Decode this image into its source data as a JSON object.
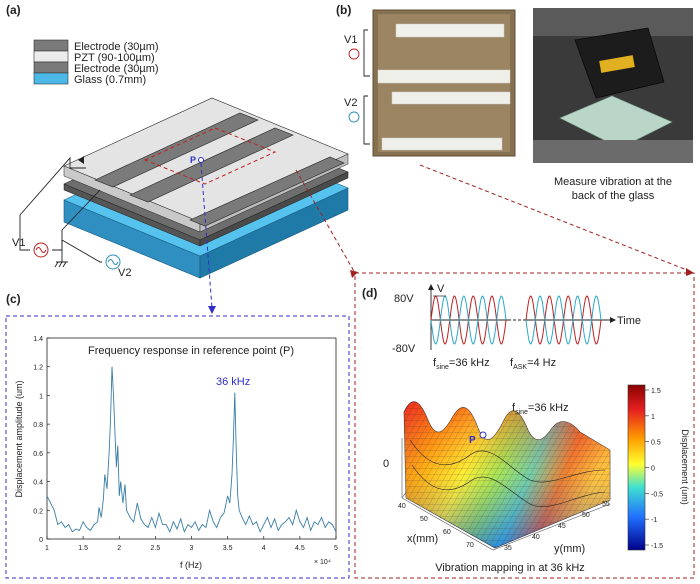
{
  "panels": {
    "a": "(a)",
    "b": "(b)",
    "c": "(c)",
    "d": "(d)"
  },
  "legend": [
    {
      "label": "Electrode (30µm)",
      "color": "#7a7a7a"
    },
    {
      "label": "PZT       (90-100µm)",
      "color": "#ececec"
    },
    {
      "label": "Electrode (30µm)",
      "color": "#7a7a7a"
    },
    {
      "label": "Glass       (0.7mm)",
      "color": "#4cb8e8"
    }
  ],
  "diagram_a": {
    "point": "P",
    "v1": "V1",
    "v2": "V2"
  },
  "photo_b": {
    "v1": "V1",
    "v2": "V2",
    "caption_line1": "Measure vibration at the",
    "caption_line2": "back of the glass"
  },
  "chart_data": [
    {
      "type": "line",
      "title": "Frequency response in reference point (P)",
      "xlabel": "f (Hz)",
      "ylabel": "Displacement amplitude (um)",
      "x_multiplier": "× 10⁴",
      "xlim": [
        1,
        5
      ],
      "ylim": [
        0,
        1.4
      ],
      "xticks": [
        "1",
        "1.5",
        "2",
        "2.5",
        "3",
        "3.5",
        "4",
        "4.5",
        "5"
      ],
      "yticks": [
        "0",
        "0.2",
        "0.4",
        "0.6",
        "0.8",
        "1",
        "1.2",
        "1.4"
      ],
      "annotation": "36 kHz",
      "series": [
        {
          "color": "#3a7ea8",
          "x": [
            1.0,
            1.05,
            1.1,
            1.15,
            1.2,
            1.25,
            1.3,
            1.35,
            1.4,
            1.45,
            1.5,
            1.55,
            1.6,
            1.65,
            1.7,
            1.72,
            1.75,
            1.78,
            1.8,
            1.83,
            1.86,
            1.88,
            1.9,
            1.92,
            1.94,
            1.96,
            1.98,
            2.0,
            2.02,
            2.05,
            2.08,
            2.1,
            2.15,
            2.2,
            2.25,
            2.3,
            2.35,
            2.4,
            2.45,
            2.5,
            2.55,
            2.6,
            2.65,
            2.7,
            2.75,
            2.8,
            2.85,
            2.9,
            2.95,
            3.0,
            3.05,
            3.1,
            3.15,
            3.2,
            3.25,
            3.3,
            3.35,
            3.4,
            3.45,
            3.5,
            3.53,
            3.56,
            3.58,
            3.6,
            3.62,
            3.64,
            3.66,
            3.7,
            3.75,
            3.8,
            3.85,
            3.9,
            3.95,
            4.0,
            4.05,
            4.1,
            4.15,
            4.2,
            4.25,
            4.3,
            4.35,
            4.4,
            4.45,
            4.5,
            4.55,
            4.6,
            4.65,
            4.7,
            4.75,
            4.8,
            4.85,
            4.9,
            4.95,
            5.0
          ],
          "y": [
            0.3,
            0.25,
            0.2,
            0.1,
            0.12,
            0.08,
            0.1,
            0.05,
            0.07,
            0.06,
            0.12,
            0.08,
            0.06,
            0.1,
            0.12,
            0.22,
            0.15,
            0.28,
            0.45,
            0.35,
            0.6,
            0.85,
            1.2,
            1.0,
            0.75,
            0.5,
            0.65,
            0.3,
            0.4,
            0.25,
            0.38,
            0.2,
            0.15,
            0.12,
            0.25,
            0.14,
            0.1,
            0.08,
            0.15,
            0.08,
            0.18,
            0.1,
            0.1,
            0.05,
            0.12,
            0.07,
            0.14,
            0.05,
            0.1,
            0.08,
            0.12,
            0.06,
            0.1,
            0.08,
            0.2,
            0.12,
            0.08,
            0.15,
            0.18,
            0.3,
            0.25,
            0.45,
            0.7,
            1.02,
            0.6,
            0.3,
            0.2,
            0.15,
            0.1,
            0.16,
            0.1,
            0.12,
            0.05,
            0.1,
            0.15,
            0.08,
            0.14,
            0.06,
            0.1,
            0.12,
            0.15,
            0.1,
            0.2,
            0.12,
            0.08,
            0.15,
            0.06,
            0.12,
            0.1,
            0.15,
            0.08,
            0.12,
            0.1,
            0.05
          ]
        }
      ]
    }
  ],
  "signal_d": {
    "ylabel": "V",
    "pos": "80V",
    "neg": "-80V",
    "time": "Time",
    "fsine": "f",
    "fsine_sub": "sine",
    "fsine_val": "=36 kHz",
    "fask": "f",
    "fask_sub": "ASK",
    "fask_val": "=4 Hz"
  },
  "surface_d": {
    "fsine": "f",
    "fsine_sub": "sine",
    "fsine_val": "=36 kHz",
    "zero": "0",
    "point": "P",
    "xlabel": "x(mm)",
    "ylabel": "y(mm)",
    "xticks": [
      "40",
      "50",
      "60",
      "70"
    ],
    "yticks": [
      "35",
      "40",
      "45",
      "50",
      "55"
    ],
    "caption": "Vibration mapping in at 36 kHz",
    "colorbar_label": "Displacement (um)",
    "colorbar_ticks": [
      "1.5",
      "1",
      "0.5",
      "0",
      "-0.5",
      "-1",
      "-1.5"
    ]
  }
}
